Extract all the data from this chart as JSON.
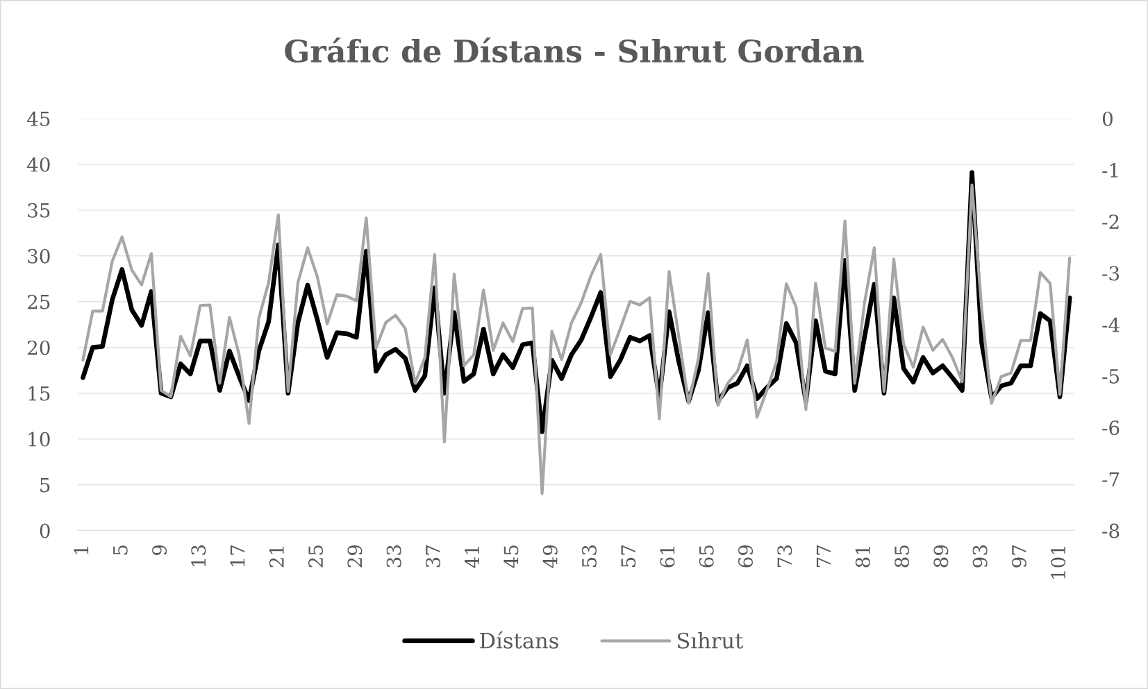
{
  "chart_data": {
    "type": "line",
    "title": "Gráfıc de Dístans - Sıhrut Gordan",
    "categories": [
      "1",
      null,
      null,
      null,
      "5",
      null,
      null,
      null,
      "9",
      null,
      null,
      null,
      "13",
      null,
      null,
      null,
      "17",
      null,
      null,
      null,
      "21",
      null,
      null,
      null,
      "25",
      null,
      null,
      null,
      "29",
      null,
      null,
      null,
      "33",
      null,
      null,
      null,
      "37",
      null,
      null,
      null,
      "41",
      null,
      null,
      null,
      "45",
      null,
      null,
      null,
      "49",
      null,
      null,
      null,
      "53",
      null,
      null,
      null,
      "57",
      null,
      null,
      null,
      "61",
      null,
      null,
      null,
      "65",
      null,
      null,
      null,
      "69",
      null,
      null,
      null,
      "73",
      null,
      null,
      null,
      "77",
      null,
      null,
      null,
      "81",
      null,
      null,
      null,
      "85",
      null,
      null,
      null,
      "89",
      null,
      null,
      null,
      "93",
      null,
      null,
      null,
      "97",
      null,
      null,
      null,
      "101",
      null
    ],
    "series": [
      {
        "name": "Dístans",
        "color": "#000000",
        "values": [
          16.7,
          20.0,
          20.1,
          25.2,
          28.5,
          24.1,
          22.4,
          26.1,
          15.0,
          14.6,
          18.2,
          17.1,
          20.7,
          20.7,
          15.3,
          19.6,
          16.8,
          14.2,
          19.6,
          22.8,
          31.2,
          15.0,
          22.7,
          26.8,
          23.0,
          18.9,
          21.6,
          21.5,
          21.1,
          30.5,
          17.4,
          19.2,
          19.8,
          18.8,
          15.3,
          16.9,
          26.5,
          15.0,
          23.8,
          16.3,
          17.1,
          22.0,
          17.1,
          19.2,
          17.8,
          20.3,
          20.5,
          10.8,
          18.6,
          16.6,
          19.2,
          20.8,
          23.3,
          26.0,
          16.8,
          18.6,
          21.1,
          20.7,
          21.3,
          14.5,
          23.9,
          18.4,
          14.1,
          17.5,
          23.8,
          14.1,
          15.6,
          16.1,
          18.0,
          14.4,
          15.6,
          16.6,
          22.6,
          20.5,
          14.1,
          22.9,
          17.4,
          17.1,
          29.5,
          15.3,
          21.1,
          26.9,
          15.0,
          25.4,
          17.7,
          16.2,
          18.9,
          17.2,
          18.0,
          16.7,
          15.3,
          39.1,
          20.5,
          14.5,
          15.8,
          16.1,
          18.0,
          18.0,
          23.7,
          22.9,
          14.6,
          25.4
        ]
      },
      {
        "name": "Sıhrut",
        "color": "#a6a6a6",
        "axis": "y2",
        "values": [
          -4.69,
          -3.74,
          -3.74,
          -2.77,
          -2.3,
          -2.94,
          -3.23,
          -2.62,
          -5.28,
          -5.4,
          -4.23,
          -4.61,
          -3.63,
          -3.62,
          -5.14,
          -3.86,
          -4.6,
          -5.92,
          -3.88,
          -3.19,
          -1.87,
          -5.3,
          -3.19,
          -2.51,
          -3.08,
          -3.99,
          -3.42,
          -3.45,
          -3.54,
          -1.93,
          -4.46,
          -3.96,
          -3.82,
          -4.08,
          -5.14,
          -4.64,
          -2.64,
          -6.28,
          -3.02,
          -4.8,
          -4.59,
          -3.33,
          -4.5,
          -3.97,
          -4.33,
          -3.69,
          -3.68,
          -7.28,
          -4.13,
          -4.68,
          -3.97,
          -3.58,
          -3.05,
          -2.64,
          -4.58,
          -4.08,
          -3.55,
          -3.62,
          -3.48,
          -5.83,
          -2.97,
          -4.25,
          -5.53,
          -4.66,
          -3.01,
          -5.57,
          -5.14,
          -4.91,
          -4.3,
          -5.8,
          -5.28,
          -4.72,
          -3.21,
          -3.66,
          -5.65,
          -3.2,
          -4.46,
          -4.52,
          -1.99,
          -5.14,
          -3.58,
          -2.51,
          -5.3,
          -2.73,
          -4.38,
          -4.83,
          -4.05,
          -4.5,
          -4.29,
          -4.64,
          -5.11,
          -1.29,
          -3.7,
          -5.53,
          -5.01,
          -4.94,
          -4.31,
          -4.31,
          -2.99,
          -3.2,
          -5.36,
          -2.71
        ]
      }
    ],
    "ylim": [
      0,
      45
    ],
    "yticks": [
      0,
      5,
      10,
      15,
      20,
      25,
      30,
      35,
      40,
      45
    ],
    "y2lim": [
      -8,
      0
    ],
    "y2ticks": [
      -8,
      -7,
      -6,
      -5,
      -4,
      -3,
      -2,
      -1,
      0
    ],
    "grid": "y",
    "legend": "bottom",
    "marker": "none",
    "line_style": "solid"
  }
}
